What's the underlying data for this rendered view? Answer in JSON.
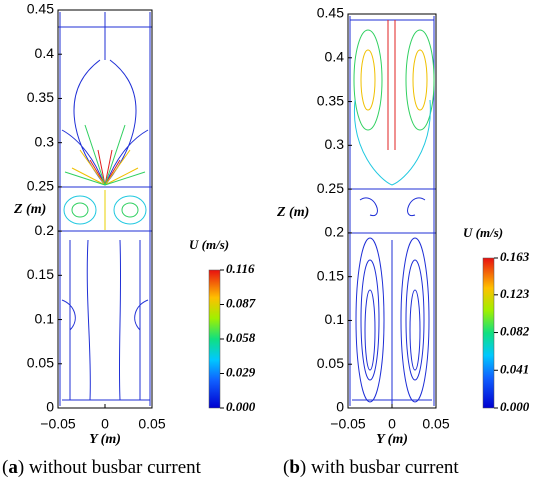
{
  "chart_data": [
    {
      "type": "streamline",
      "xlabel": "Y (m)",
      "ylabel": "Z (m)",
      "xlim": [
        -0.05,
        0.05
      ],
      "xticks": [
        {
          "value": -0.05,
          "label": "−0.05"
        },
        0,
        0.05
      ],
      "ylim": [
        0,
        0.45
      ],
      "yticks": [
        0,
        0.05,
        0.1,
        0.15,
        0.2,
        0.25,
        0.3,
        0.35,
        0.4,
        0.45
      ],
      "colorbar": {
        "label": "U (m/s)",
        "lim": [
          0,
          0.116
        ],
        "ticks": [
          {
            "value": 0,
            "label": "0.000"
          },
          0.029,
          0.058,
          0.087,
          0.116
        ]
      },
      "caption": [
        "(",
        "a",
        ") without busbar current"
      ]
    },
    {
      "type": "streamline",
      "xlabel": "Y (m)",
      "ylabel": "Z (m)",
      "xlim": [
        -0.05,
        0.05
      ],
      "xticks": [
        {
          "value": -0.05,
          "label": "−0.05"
        },
        0,
        0.05
      ],
      "ylim": [
        0,
        0.45
      ],
      "yticks": [
        0,
        0.05,
        0.1,
        0.15,
        0.2,
        0.25,
        0.3,
        0.35,
        0.4,
        0.45
      ],
      "colorbar": {
        "label": "U (m/s)",
        "lim": [
          0,
          0.163
        ],
        "ticks": [
          {
            "value": 0,
            "label": "0.000"
          },
          0.041,
          0.082,
          0.123,
          0.163
        ]
      },
      "caption": [
        "(",
        "b",
        ") with busbar current"
      ]
    }
  ]
}
